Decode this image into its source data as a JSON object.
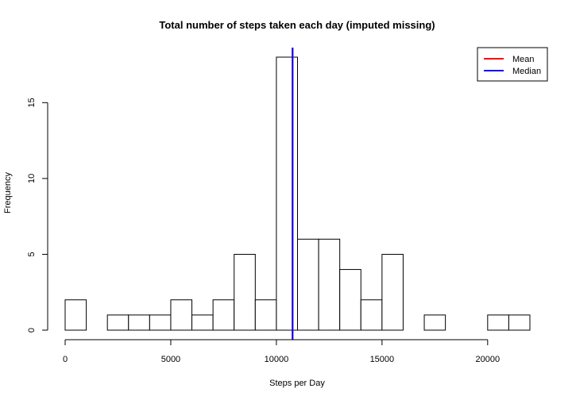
{
  "chart_data": {
    "type": "bar",
    "title": "Total number of steps taken each day (imputed missing)",
    "xlabel": "Steps per Day",
    "ylabel": "Frequency",
    "bin_width": 1000,
    "bin_start": 0,
    "frequencies": [
      2,
      0,
      1,
      1,
      1,
      2,
      1,
      2,
      5,
      2,
      18,
      6,
      6,
      4,
      2,
      5,
      0,
      1,
      0,
      0,
      1,
      1
    ],
    "xlim": [
      0,
      22000
    ],
    "ylim": [
      0,
      18
    ],
    "x_ticks": [
      0,
      5000,
      10000,
      15000,
      20000
    ],
    "y_ticks": [
      0,
      5,
      10,
      15
    ],
    "lines": [
      {
        "name": "Mean",
        "x": 10766,
        "color": "#ff0000"
      },
      {
        "name": "Median",
        "x": 10766,
        "color": "#0000ff"
      }
    ],
    "legend": {
      "position": "top-right",
      "entries": [
        {
          "label": "Mean",
          "color": "#ff0000"
        },
        {
          "label": "Median",
          "color": "#0000ff"
        }
      ]
    }
  }
}
